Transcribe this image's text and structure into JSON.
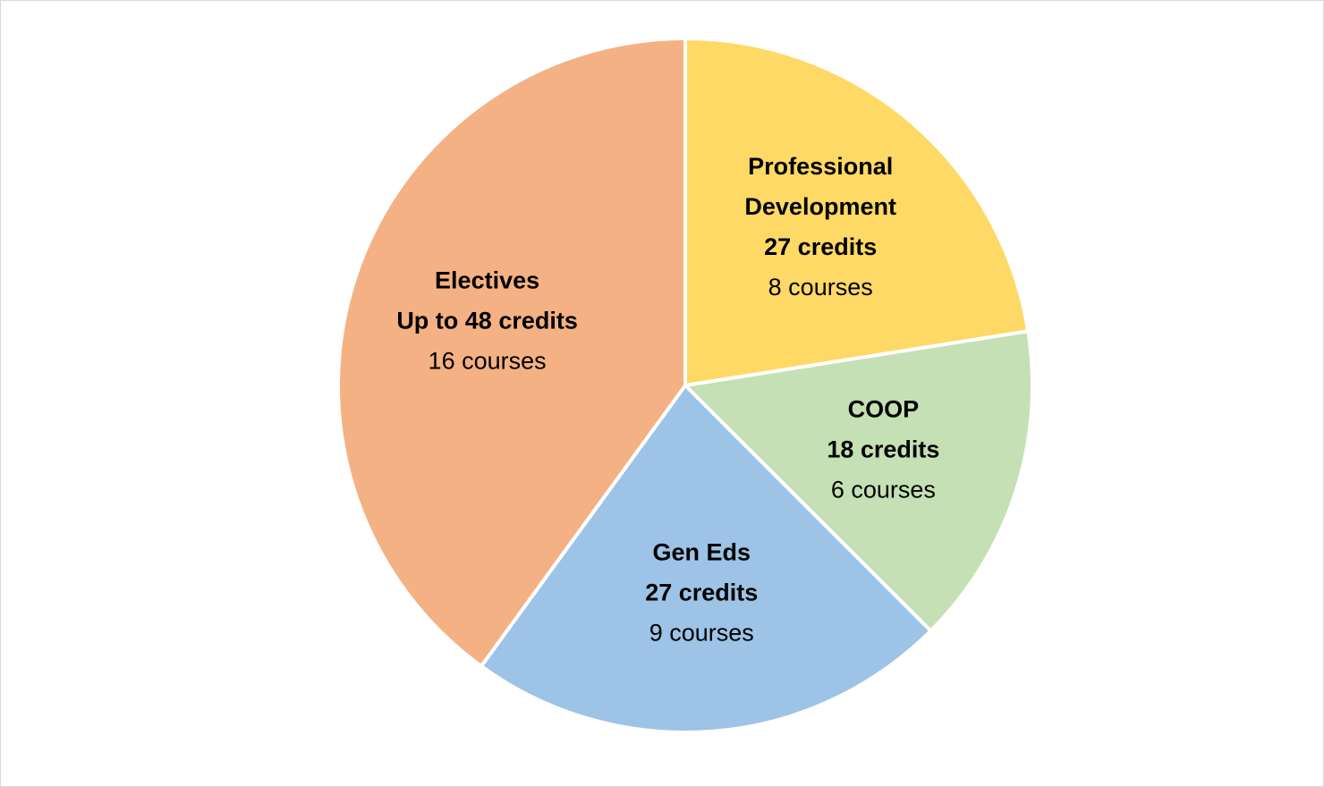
{
  "chart_data": {
    "type": "pie",
    "categories": [
      "Professional Development",
      "COOP",
      "Gen Eds",
      "Electives"
    ],
    "values": [
      27,
      18,
      27,
      48
    ],
    "value_labels": [
      "27 credits",
      "18 credits",
      "27 credits",
      "Up to 48 credits"
    ],
    "course_labels": [
      "8 courses",
      "6 courses",
      "9 courses",
      "16 courses"
    ],
    "colors": [
      "#ffd966",
      "#c5e0b4",
      "#9dc3e6",
      "#f4b183"
    ]
  }
}
